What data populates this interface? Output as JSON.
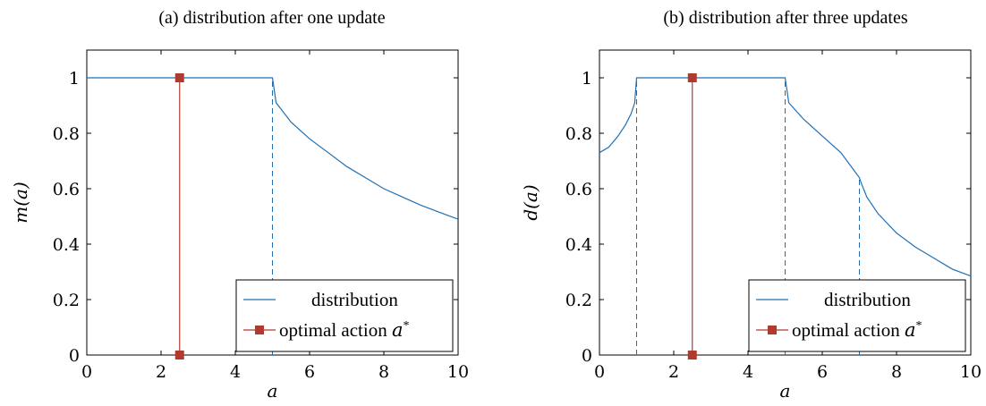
{
  "chart_data": [
    {
      "type": "line",
      "title": "(a) distribution after one update",
      "xlabel": "a",
      "ylabel": "m(a)",
      "xlim": [
        0,
        10
      ],
      "ylim": [
        0,
        1.1
      ],
      "xticks": [
        0,
        2,
        4,
        6,
        8,
        10
      ],
      "yticks": [
        0,
        0.2,
        0.4,
        0.6,
        0.8,
        1
      ],
      "grid": false,
      "legend_position": "bottom-right",
      "series": [
        {
          "name": "distribution",
          "color": "#1f6fb4",
          "x": [
            0,
            5,
            5.1,
            5.5,
            6,
            6.5,
            7,
            7.5,
            8,
            8.5,
            9,
            9.5,
            10
          ],
          "y": [
            1,
            1,
            0.91,
            0.84,
            0.78,
            0.73,
            0.68,
            0.64,
            0.6,
            0.57,
            0.54,
            0.515,
            0.49
          ]
        },
        {
          "name": "optimal action a*",
          "color": "#b03a2e",
          "marker": "square",
          "x": [
            2.5,
            2.5
          ],
          "y": [
            0,
            1
          ]
        }
      ],
      "dashed_lines": [
        {
          "x": 5,
          "y": 1
        }
      ],
      "legend": {
        "entries": [
          "distribution",
          "optimal action a*"
        ],
        "label_main": "optimal action ",
        "label_sym": "a",
        "label_sup": "*"
      }
    },
    {
      "type": "line",
      "title": "(b) distribution after three updates",
      "xlabel": "a",
      "ylabel": "d(a)",
      "xlim": [
        0,
        10
      ],
      "ylim": [
        0,
        1.1
      ],
      "xticks": [
        0,
        2,
        4,
        6,
        8,
        10
      ],
      "yticks": [
        0,
        0.2,
        0.4,
        0.6,
        0.8,
        1
      ],
      "grid": false,
      "legend_position": "bottom-right",
      "series": [
        {
          "name": "distribution",
          "color": "#1f6fb4",
          "x": [
            0,
            0.25,
            0.5,
            0.7,
            0.85,
            0.95,
            1,
            5,
            5.1,
            5.5,
            6,
            6.5,
            7,
            7.05,
            7.2,
            7.5,
            8,
            8.5,
            9,
            9.5,
            10
          ],
          "y": [
            0.73,
            0.75,
            0.79,
            0.83,
            0.87,
            0.91,
            1,
            1,
            0.91,
            0.85,
            0.79,
            0.73,
            0.64,
            0.62,
            0.57,
            0.51,
            0.44,
            0.39,
            0.35,
            0.31,
            0.285
          ]
        },
        {
          "name": "optimal action a*",
          "color": "#b03a2e",
          "marker": "square",
          "x": [
            2.5,
            2.5
          ],
          "y": [
            0,
            1
          ]
        }
      ],
      "dashed_lines": [
        {
          "x": 1,
          "y": 1
        },
        {
          "x": 5,
          "y": 1
        },
        {
          "x": 7,
          "y": 0.64
        }
      ],
      "legend": {
        "entries": [
          "distribution",
          "optimal action a*"
        ],
        "label_main": "optimal action ",
        "label_sym": "a",
        "label_sup": "*"
      }
    }
  ]
}
